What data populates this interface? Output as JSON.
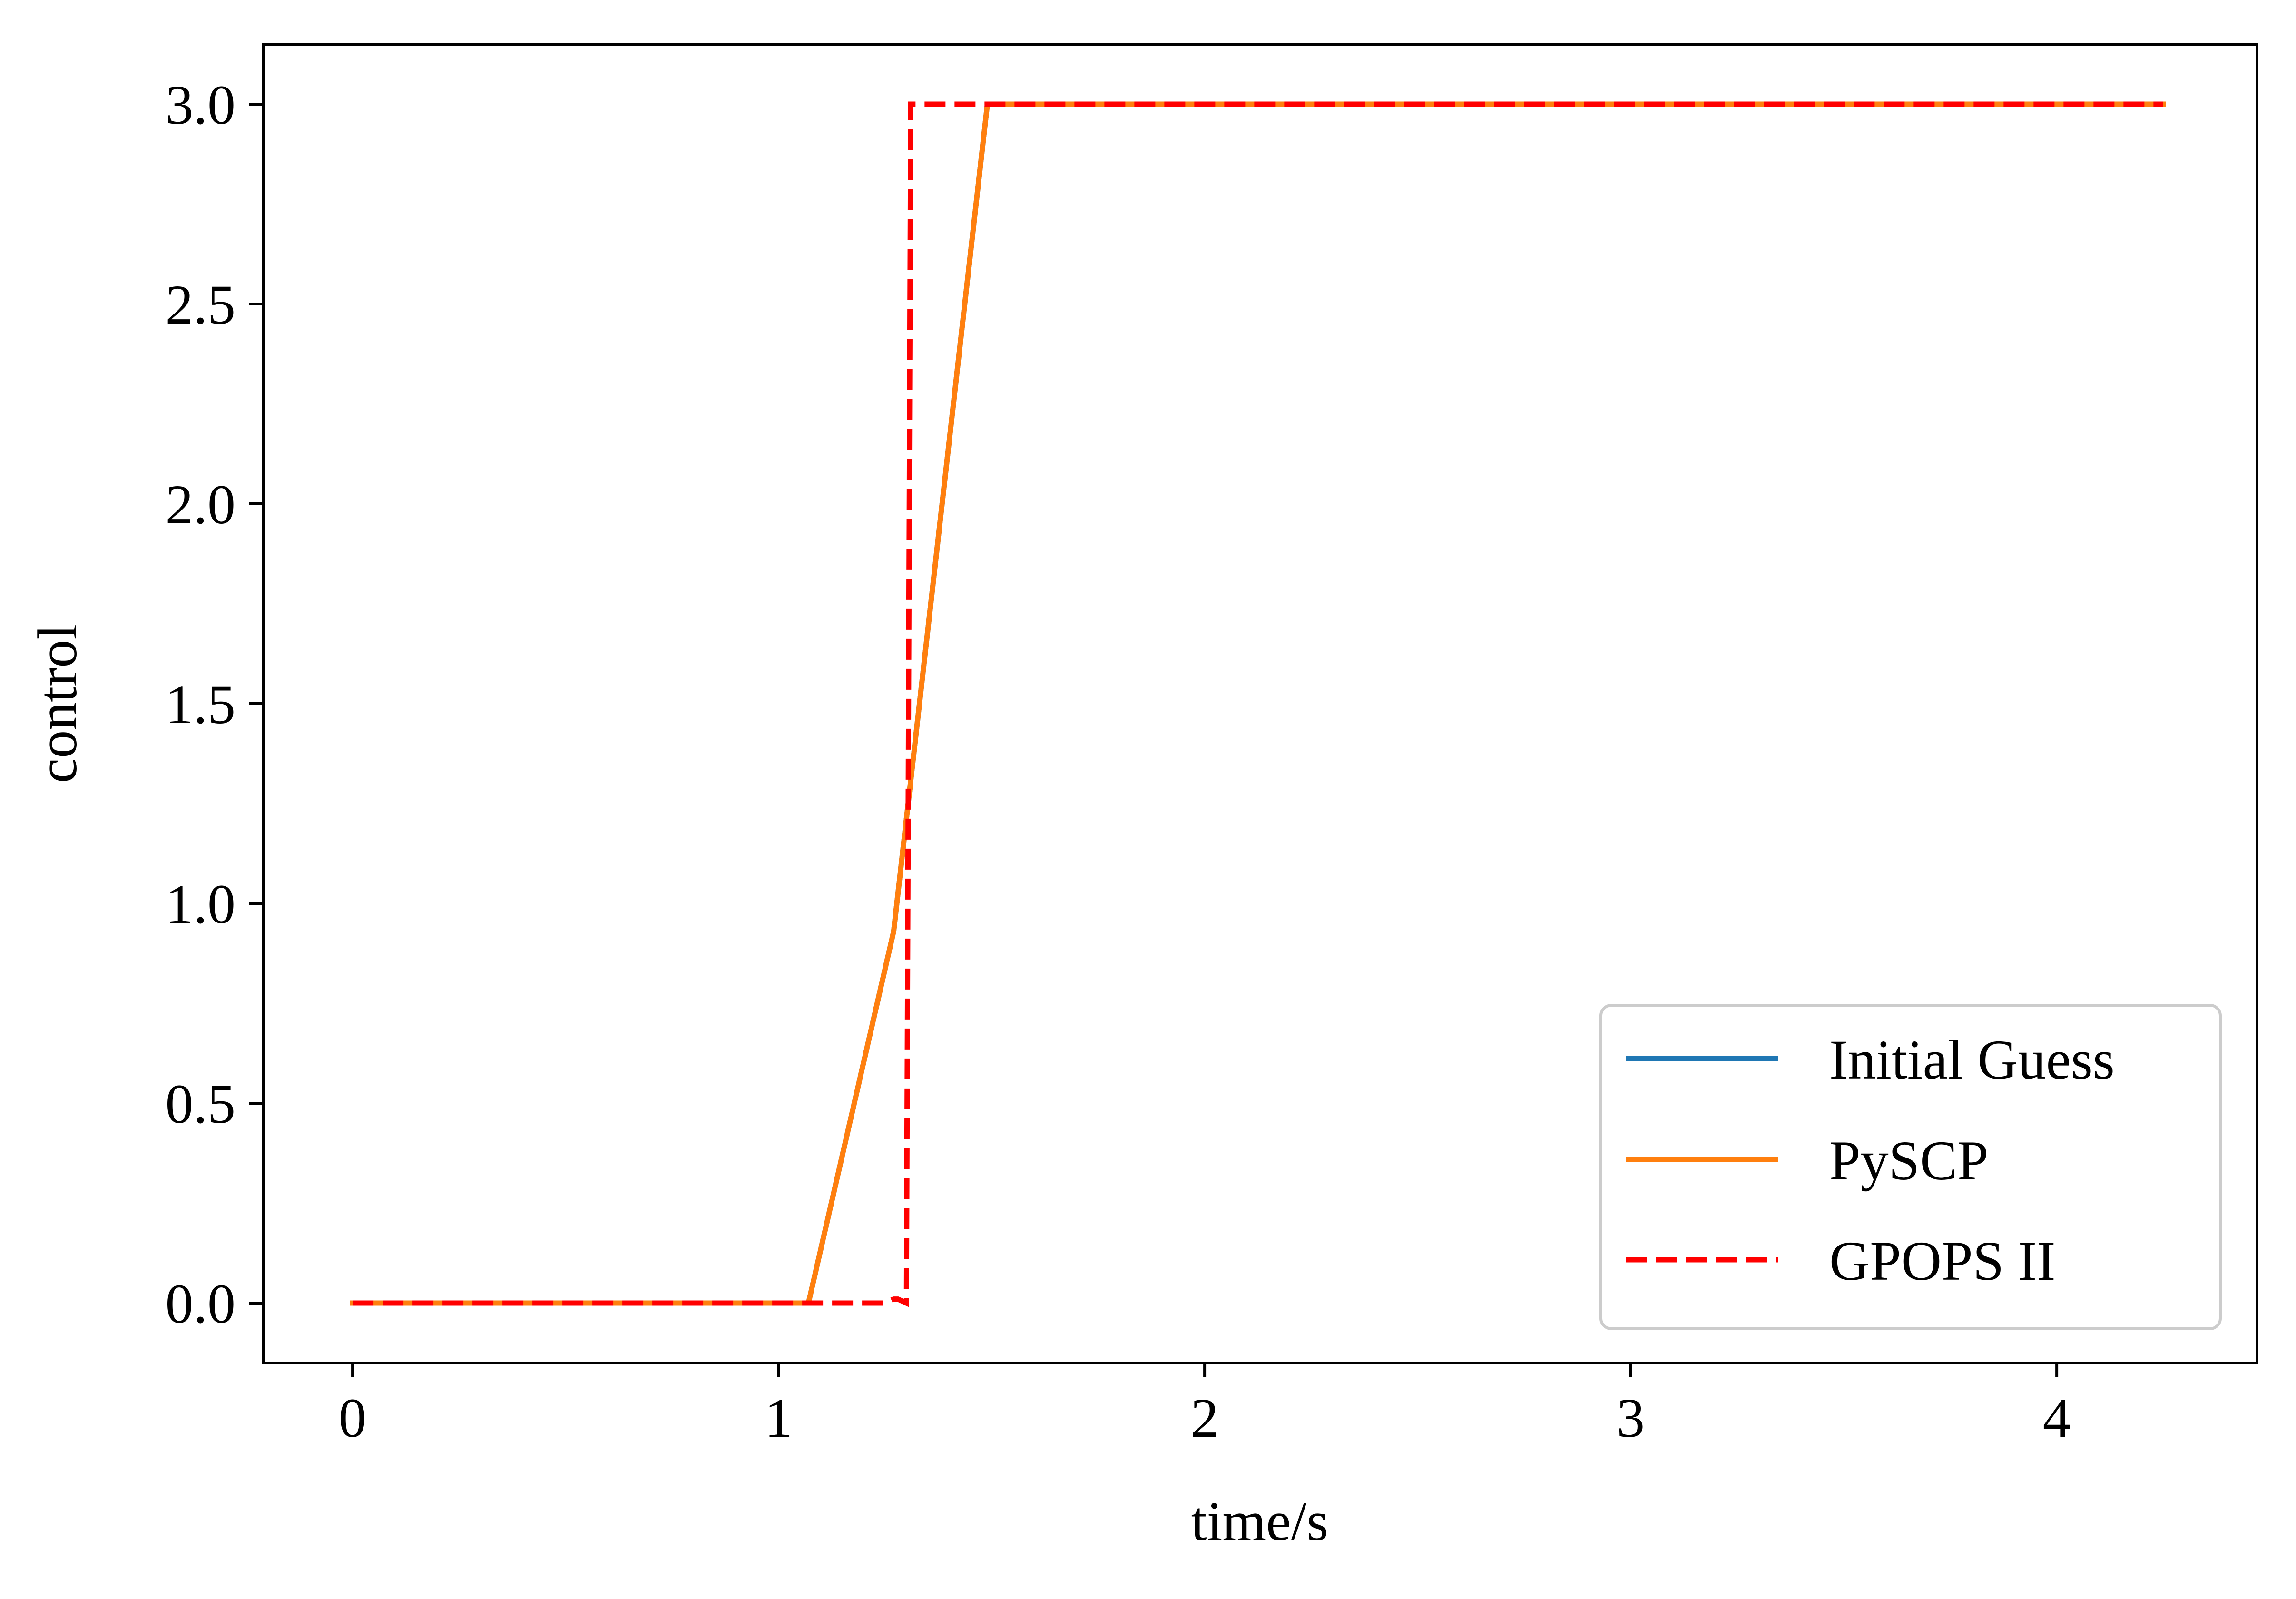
{
  "chart_data": {
    "type": "line",
    "title": "",
    "xlabel": "time/s",
    "ylabel": "control",
    "xlim": [
      -0.21,
      4.47
    ],
    "ylim": [
      -0.15,
      3.15
    ],
    "x_ticks": [
      0,
      1,
      2,
      3,
      4
    ],
    "x_tick_labels": [
      "0",
      "1",
      "2",
      "3",
      "4"
    ],
    "y_ticks": [
      0.0,
      0.5,
      1.0,
      1.5,
      2.0,
      2.5,
      3.0
    ],
    "y_tick_labels": [
      "0.0",
      "0.5",
      "1.0",
      "1.5",
      "2.0",
      "2.5",
      "3.0"
    ],
    "grid": false,
    "legend_position": "lower right",
    "series": [
      {
        "name": "Initial Guess",
        "color": "#1f77b4",
        "dash": "solid",
        "x": [
          0,
          1.07,
          1.27,
          1.49,
          4.25
        ],
        "y": [
          0,
          0,
          0.93,
          3.0,
          3.0
        ]
      },
      {
        "name": "PySCP",
        "color": "#ff7f0e",
        "dash": "solid",
        "x": [
          0,
          1.07,
          1.27,
          1.49,
          4.25
        ],
        "y": [
          0,
          0,
          0.93,
          3.0,
          3.0
        ]
      },
      {
        "name": "GPOPS II",
        "color": "#ff0000",
        "dash": "dashed",
        "x": [
          0,
          1.25,
          1.27,
          1.28,
          1.3,
          1.31,
          1.33,
          4.25
        ],
        "y": [
          0,
          0,
          0.01,
          0.01,
          0,
          3.0,
          3.0,
          3.0
        ]
      }
    ]
  }
}
